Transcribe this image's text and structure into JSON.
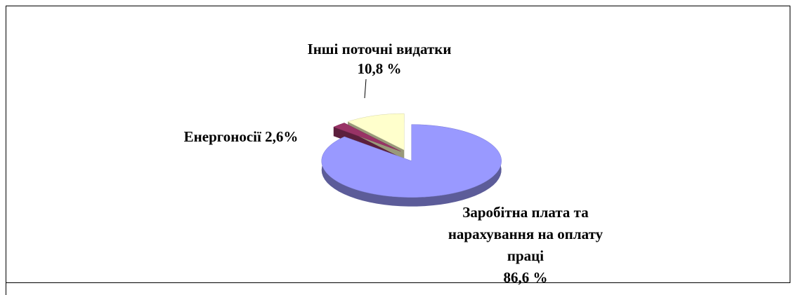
{
  "chart_data": {
    "type": "pie",
    "categories": [
      "Заробітна плата та нарахування на оплату праці",
      "Енергоносії",
      "Інші поточні видатки"
    ],
    "values": [
      86.6,
      2.6,
      10.8
    ],
    "value_labels": [
      "86,6 %",
      "2,6%",
      "10,8 %"
    ],
    "colors": [
      "#9999ff",
      "#993366",
      "#ffffcc"
    ]
  }
}
